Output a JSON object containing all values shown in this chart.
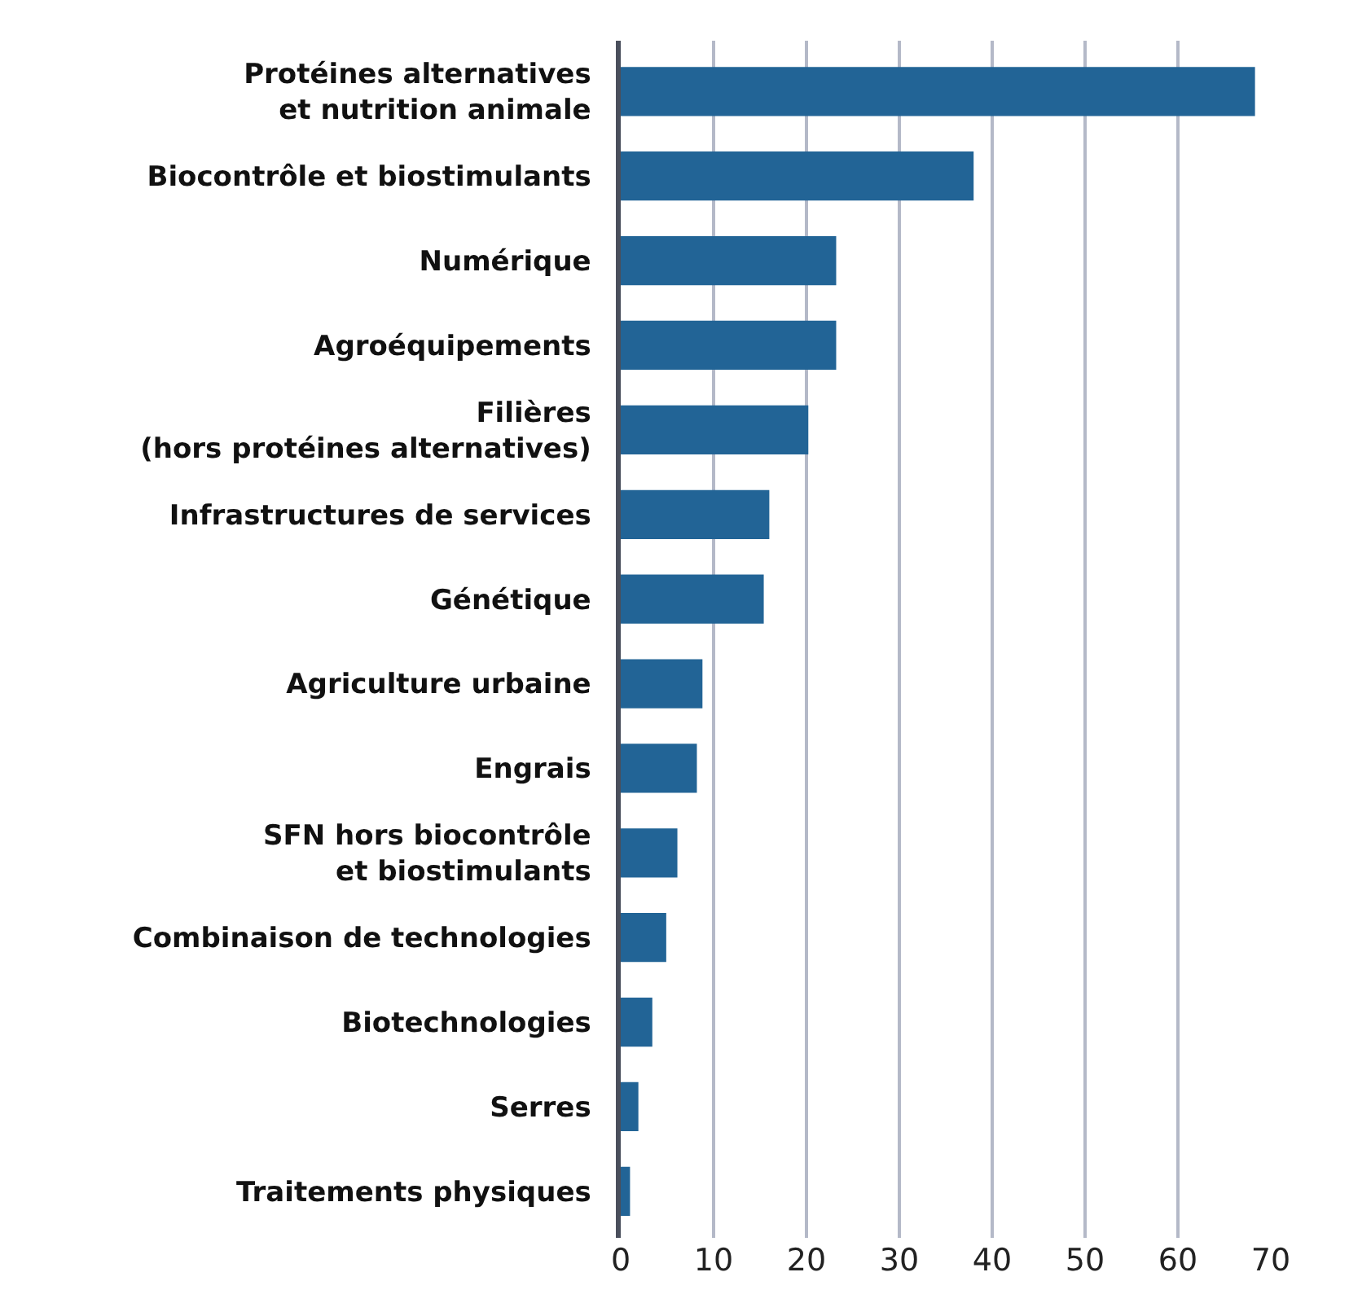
{
  "chart_data": {
    "type": "bar",
    "orientation": "horizontal",
    "categories": [
      "Protéines alternatives\net nutrition animale",
      "Biocontrôle et biostimulants",
      "Numérique",
      "Agroéquipements",
      "Filières\n(hors protéines alternatives)",
      "Infrastructures de services",
      "Génétique",
      "Agriculture urbaine",
      "Engrais",
      "SFN hors biocontrôle\net biostimulants",
      "Combinaison de technologies",
      "Biotechnologies",
      "Serres",
      "Traitements physiques"
    ],
    "values": [
      68.3,
      38,
      23.2,
      23.2,
      20.2,
      16,
      15.4,
      8.8,
      8.2,
      6.1,
      4.9,
      3.4,
      1.9,
      1
    ],
    "color": "#226496",
    "xlim": [
      0,
      70
    ],
    "xticks": [
      0,
      10,
      20,
      30,
      40,
      50,
      60,
      70
    ],
    "grid": "x"
  }
}
